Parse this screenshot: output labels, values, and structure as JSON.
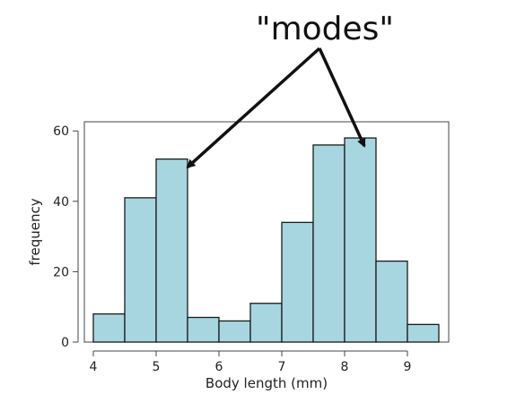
{
  "chart_data": {
    "type": "bar",
    "title": "",
    "xlabel": "Body length (mm)",
    "ylabel": "frequency",
    "xlim": [
      4,
      9.5
    ],
    "ylim": [
      0,
      62
    ],
    "bin_width": 0.5,
    "bins": [
      {
        "x0": 4.0,
        "x1": 4.5,
        "value": 8
      },
      {
        "x0": 4.5,
        "x1": 5.0,
        "value": 41
      },
      {
        "x0": 5.0,
        "x1": 5.5,
        "value": 52
      },
      {
        "x0": 5.5,
        "x1": 6.0,
        "value": 7
      },
      {
        "x0": 6.0,
        "x1": 6.5,
        "value": 6
      },
      {
        "x0": 6.5,
        "x1": 7.0,
        "value": 11
      },
      {
        "x0": 7.0,
        "x1": 7.5,
        "value": 34
      },
      {
        "x0": 7.5,
        "x1": 8.0,
        "value": 56
      },
      {
        "x0": 8.0,
        "x1": 8.5,
        "value": 58
      },
      {
        "x0": 8.5,
        "x1": 9.0,
        "value": 23
      },
      {
        "x0": 9.0,
        "x1": 9.5,
        "value": 5
      }
    ],
    "x_ticks": [
      4,
      5,
      6,
      7,
      8,
      9
    ],
    "x_tick_labels": [
      "4",
      "5",
      "6",
      "7",
      "8",
      "9"
    ],
    "y_ticks": [
      0,
      20,
      40,
      60
    ],
    "y_tick_labels": [
      "0",
      "20",
      "40",
      "60"
    ],
    "grid": false,
    "bar_color": "#a8d6e0",
    "bar_edge_color": "#1a1a1a",
    "annotation": {
      "text": "\"modes\"",
      "points_to": [
        {
          "x": 5.5,
          "y": 52
        },
        {
          "x": 8.2,
          "y": 58
        }
      ]
    }
  }
}
